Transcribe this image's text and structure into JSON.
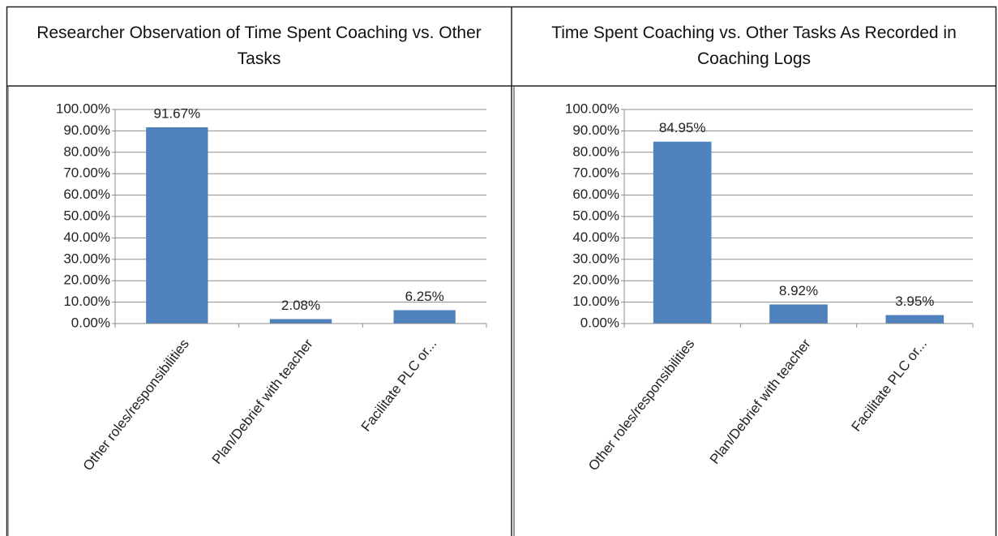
{
  "chart_data": [
    {
      "type": "bar",
      "title": "Researcher Observation of Time Spent Coaching vs. Other Tasks",
      "categories": [
        "Other roles/responsibilities",
        "Plan/Debrief with teacher",
        "Facilitate PLC or..."
      ],
      "values": [
        91.67,
        2.08,
        6.25
      ],
      "value_labels": [
        "91.67%",
        "2.08%",
        "6.25%"
      ],
      "color": "#4f81bd",
      "ylim": [
        0,
        100
      ],
      "yticks": [
        {
          "value": 0,
          "label": "0.00%"
        },
        {
          "value": 10,
          "label": "10.00%"
        },
        {
          "value": 20,
          "label": "20.00%"
        },
        {
          "value": 30,
          "label": "30.00%"
        },
        {
          "value": 40,
          "label": "40.00%"
        },
        {
          "value": 50,
          "label": "50.00%"
        },
        {
          "value": 60,
          "label": "60.00%"
        },
        {
          "value": 70,
          "label": "70.00%"
        },
        {
          "value": 80,
          "label": "80.00%"
        },
        {
          "value": 90,
          "label": "90.00%"
        },
        {
          "value": 100,
          "label": "100.00%"
        }
      ],
      "grid": true
    },
    {
      "type": "bar",
      "title": "Time Spent Coaching vs. Other Tasks As Recorded in Coaching Logs",
      "categories": [
        "Other roles/responsibilities",
        "Plan/Debrief with teacher",
        "Facilitate PLC or..."
      ],
      "values": [
        84.95,
        8.92,
        3.95
      ],
      "value_labels": [
        "84.95%",
        "8.92%",
        "3.95%"
      ],
      "color": "#4f81bd",
      "ylim": [
        0,
        100
      ],
      "yticks": [
        {
          "value": 0,
          "label": "0.00%"
        },
        {
          "value": 10,
          "label": "10.00%"
        },
        {
          "value": 20,
          "label": "20.00%"
        },
        {
          "value": 30,
          "label": "30.00%"
        },
        {
          "value": 40,
          "label": "40.00%"
        },
        {
          "value": 50,
          "label": "50.00%"
        },
        {
          "value": 60,
          "label": "60.00%"
        },
        {
          "value": 70,
          "label": "70.00%"
        },
        {
          "value": 80,
          "label": "80.00%"
        },
        {
          "value": 90,
          "label": "90.00%"
        },
        {
          "value": 100,
          "label": "100.00%"
        }
      ],
      "grid": true
    }
  ]
}
